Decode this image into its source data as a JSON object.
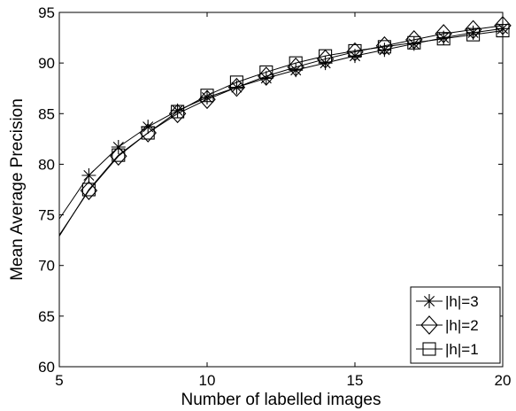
{
  "chart_data": {
    "type": "line",
    "title": "",
    "xlabel": "Number of labelled images",
    "ylabel": "Mean Average Precision",
    "xlim": [
      5,
      20
    ],
    "ylim": [
      60,
      95
    ],
    "xticks": [
      5,
      10,
      15,
      20
    ],
    "yticks": [
      60,
      65,
      70,
      75,
      80,
      85,
      90,
      95
    ],
    "xtick_labels": [
      "5",
      "10",
      "15",
      "20"
    ],
    "ytick_labels": [
      "60",
      "65",
      "70",
      "75",
      "80",
      "85",
      "90",
      "95"
    ],
    "grid": false,
    "legend_position": "bottom-right",
    "x": [
      5,
      6,
      7,
      8,
      9,
      10,
      11,
      12,
      13,
      14,
      15,
      16,
      17,
      18,
      19,
      20
    ],
    "series": [
      {
        "name": "|h|=3",
        "marker": "star",
        "values": [
          74.6,
          78.9,
          81.7,
          83.7,
          85.3,
          86.6,
          87.6,
          88.5,
          89.3,
          90.0,
          90.7,
          91.3,
          91.9,
          92.5,
          93.0,
          93.4
        ]
      },
      {
        "name": "|h|=2",
        "marker": "diamond",
        "values": [
          73.0,
          77.4,
          80.8,
          83.1,
          85.0,
          86.4,
          87.6,
          88.7,
          89.6,
          90.4,
          91.1,
          91.7,
          92.3,
          92.9,
          93.3,
          93.7
        ]
      },
      {
        "name": "|h|=1",
        "marker": "square",
        "values": [
          72.9,
          77.5,
          80.9,
          83.1,
          85.2,
          86.8,
          88.1,
          89.1,
          90.0,
          90.7,
          91.2,
          91.6,
          92.0,
          92.4,
          92.8,
          93.2
        ]
      }
    ]
  }
}
